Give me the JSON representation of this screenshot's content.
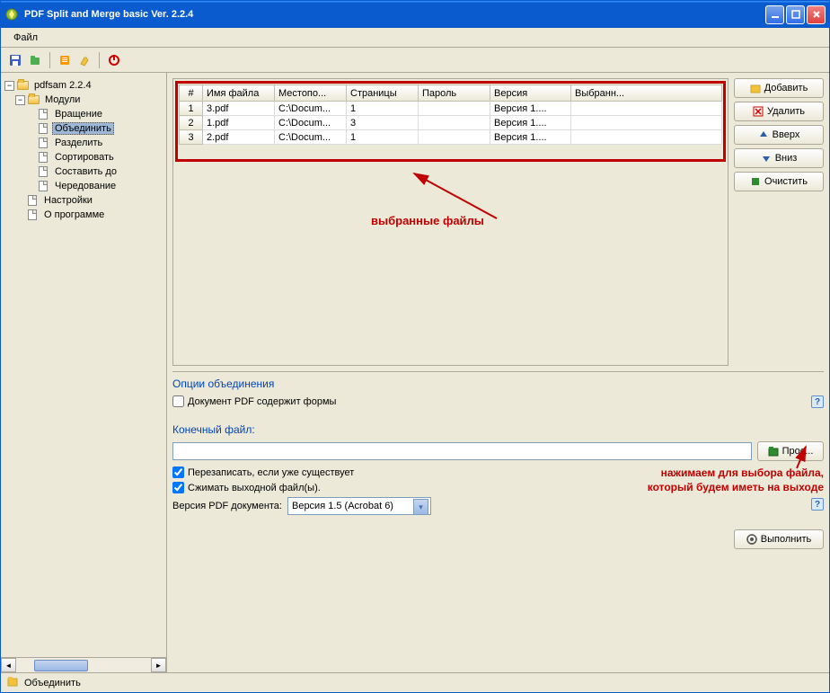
{
  "window": {
    "title": "PDF Split and Merge basic Ver. 2.2.4"
  },
  "menubar": {
    "file": "Файл"
  },
  "tree": {
    "root": "pdfsam 2.2.4",
    "modules": "Модули",
    "rotation": "Вращение",
    "merge": "Объединить",
    "split": "Разделить",
    "sort": "Сортировать",
    "compose": "Составить до",
    "alternate": "Чередование",
    "settings": "Настройки",
    "about": "О программе"
  },
  "table": {
    "headers": {
      "num": "#",
      "filename": "Имя файла",
      "location": "Местопо...",
      "pages": "Страницы",
      "password": "Пароль",
      "version": "Версия",
      "selected": "Выбранн..."
    },
    "rows": [
      {
        "num": "1",
        "filename": "3.pdf",
        "location": "C:\\Docum...",
        "pages": "1",
        "password": "",
        "version": "Версия 1....",
        "selected": ""
      },
      {
        "num": "2",
        "filename": "1.pdf",
        "location": "C:\\Docum...",
        "pages": "3",
        "password": "",
        "version": "Версия 1....",
        "selected": ""
      },
      {
        "num": "3",
        "filename": "2.pdf",
        "location": "C:\\Docum...",
        "pages": "1",
        "password": "",
        "version": "Версия 1....",
        "selected": ""
      }
    ]
  },
  "buttons": {
    "add": "Добавить",
    "delete": "Удалить",
    "up": "Вверх",
    "down": "Вниз",
    "clear": "Очистить",
    "browse": "Прос...",
    "execute": "Выполнить"
  },
  "options": {
    "section_title": "Опции объединения",
    "contains_forms": "Документ PDF содержит формы",
    "output_section": "Конечный файл:",
    "overwrite": "Перезаписать, если уже существует",
    "compress": "Сжимать выходной файл(ы).",
    "version_label": "Версия PDF документа:",
    "version_value": "Версия 1.5 (Acrobat 6)"
  },
  "annotations": {
    "selected_files": "выбранные файлы",
    "browse_hint": "нажимаем для выбора файла, который будем иметь на выходе"
  },
  "statusbar": {
    "text": "Объединить"
  },
  "colors": {
    "annotation": "#c00000",
    "section_title": "#0046b8"
  }
}
